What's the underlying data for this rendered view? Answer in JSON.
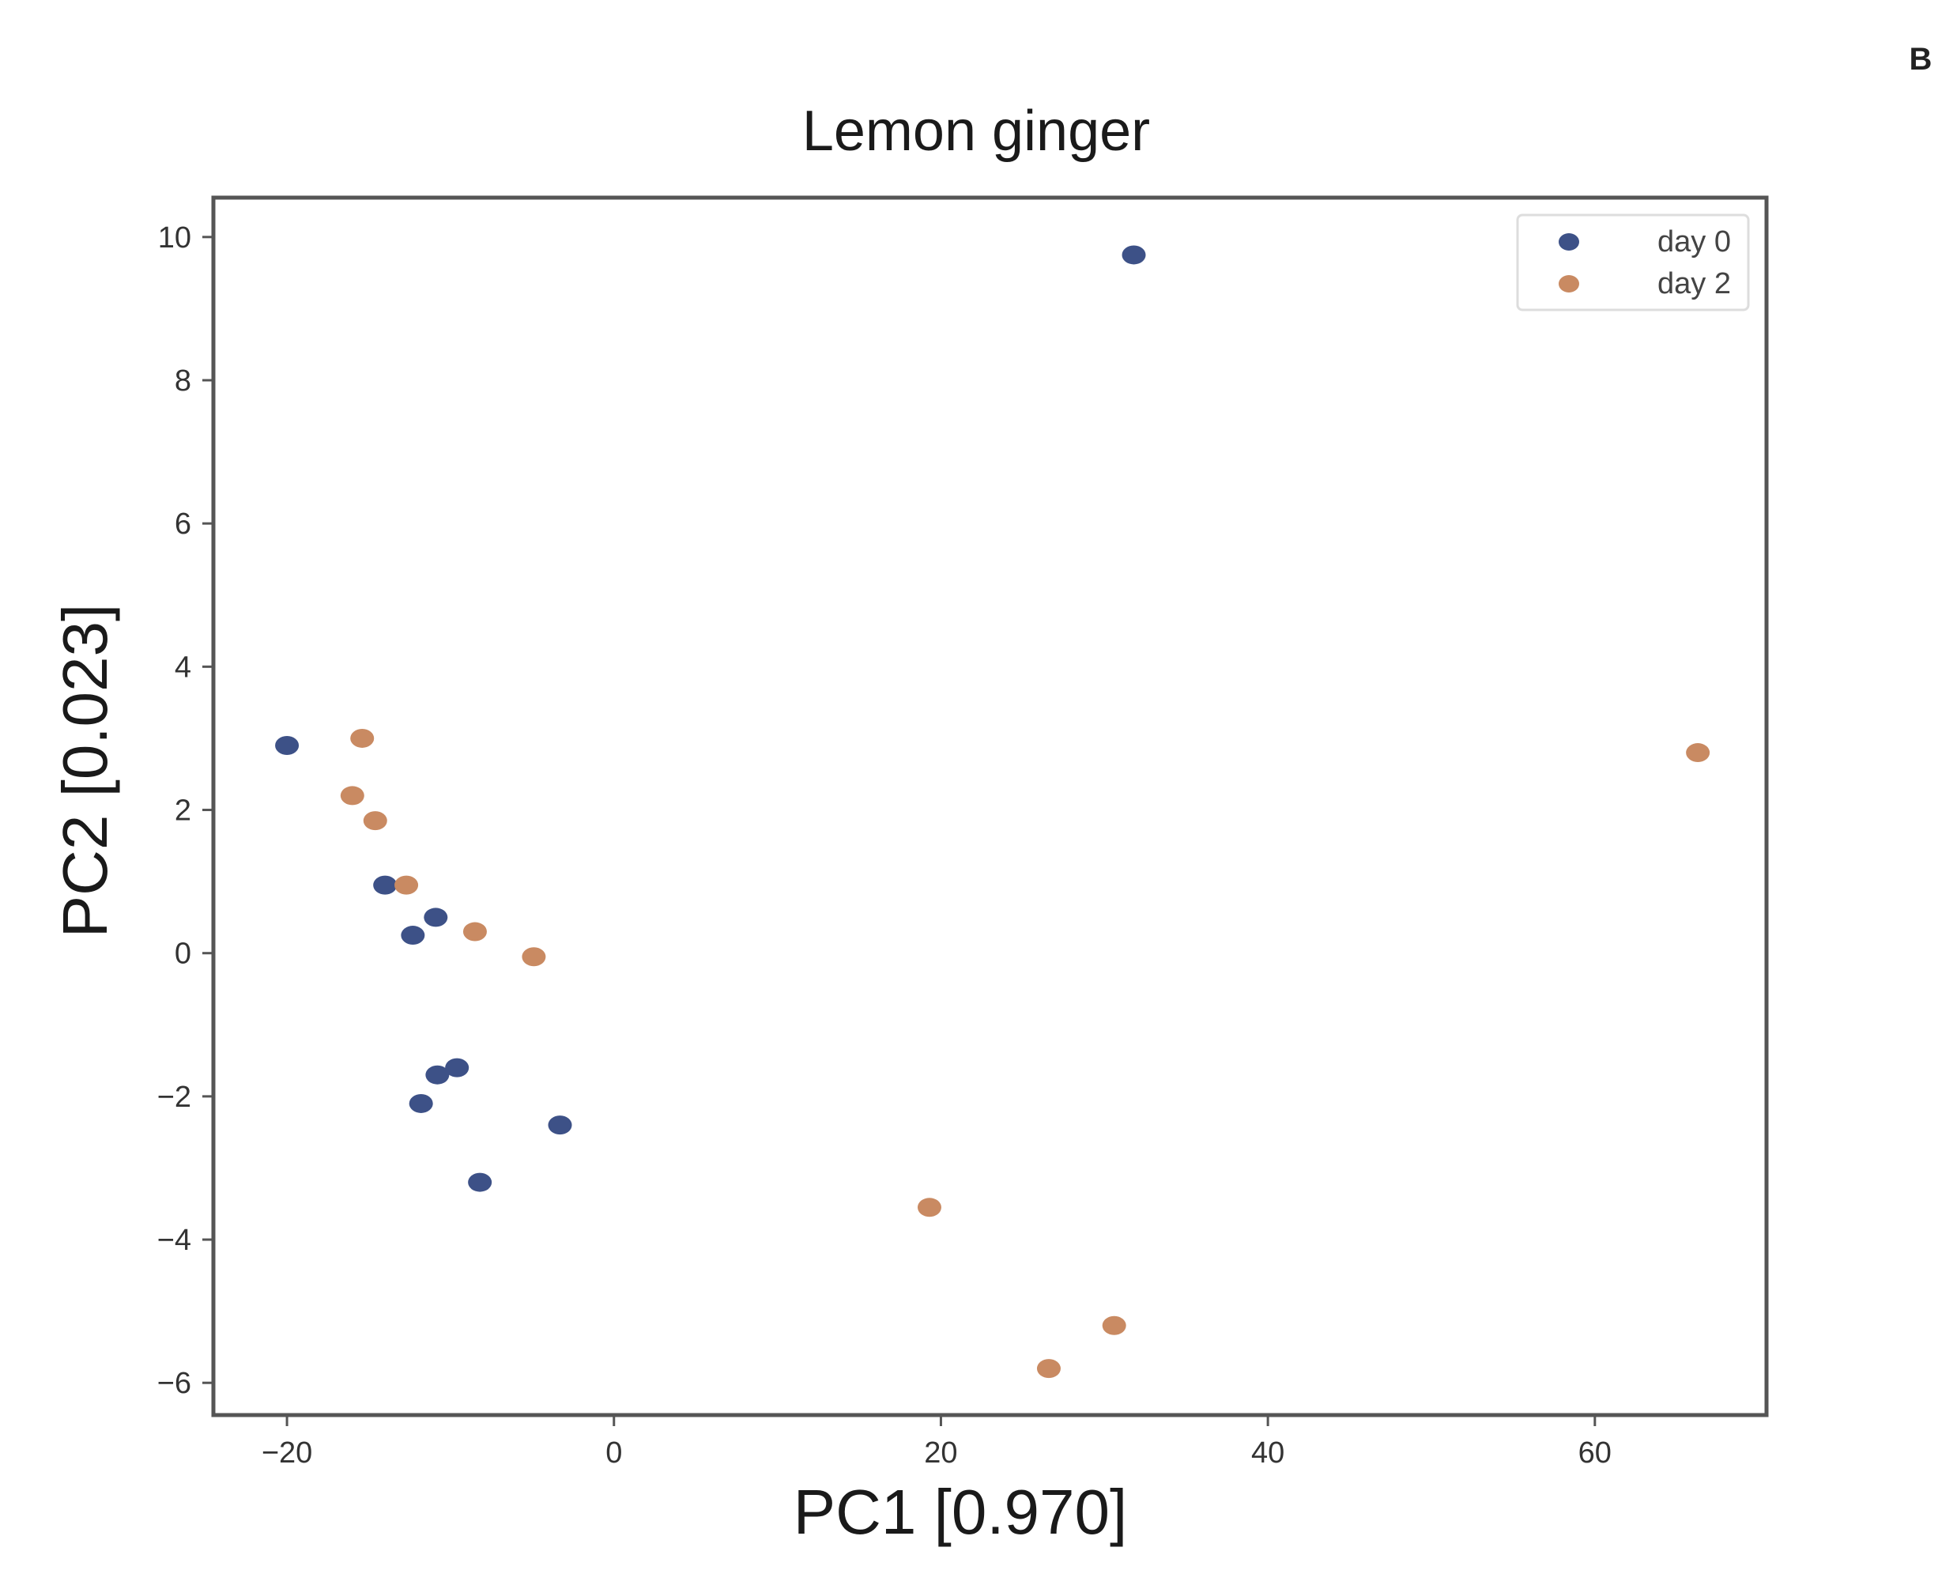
{
  "panel_label": "B",
  "chart_data": {
    "type": "scatter",
    "title": "Lemon ginger",
    "xlabel": "PC1 [0.970]",
    "ylabel": "PC2 [0.023]",
    "xlim": [
      -24.5,
      70.5
    ],
    "ylim": [
      -6.45,
      10.55
    ],
    "xticks": [
      -20,
      0,
      20,
      40,
      60
    ],
    "yticks": [
      -6,
      -4,
      -2,
      0,
      2,
      4,
      6,
      8,
      10
    ],
    "grid": false,
    "legend_position": "top-right",
    "series": [
      {
        "name": "day 0",
        "color": "#3d5187",
        "points": [
          {
            "x": 31.8,
            "y": 9.75
          },
          {
            "x": -20.0,
            "y": 2.9
          },
          {
            "x": -14.0,
            "y": 0.95
          },
          {
            "x": -10.9,
            "y": 0.5
          },
          {
            "x": -12.3,
            "y": 0.25
          },
          {
            "x": -9.6,
            "y": -1.6
          },
          {
            "x": -10.8,
            "y": -1.7
          },
          {
            "x": -11.8,
            "y": -2.1
          },
          {
            "x": -3.3,
            "y": -2.4
          },
          {
            "x": -8.2,
            "y": -3.2
          }
        ]
      },
      {
        "name": "day 2",
        "color": "#c98a62",
        "points": [
          {
            "x": -15.4,
            "y": 3.0
          },
          {
            "x": -16.0,
            "y": 2.2
          },
          {
            "x": -14.6,
            "y": 1.85
          },
          {
            "x": -12.7,
            "y": 0.95
          },
          {
            "x": -8.5,
            "y": 0.3
          },
          {
            "x": -4.9,
            "y": -0.05
          },
          {
            "x": 19.3,
            "y": -3.55
          },
          {
            "x": 30.6,
            "y": -5.2
          },
          {
            "x": 26.6,
            "y": -5.8
          },
          {
            "x": 66.3,
            "y": 2.8
          }
        ]
      }
    ]
  }
}
